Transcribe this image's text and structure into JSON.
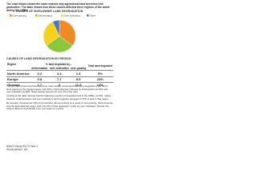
{
  "header": {
    "intro": "The chart below shows the main reasons why agricultural land becomes less productive. The table shows how these causes affected three regions of the world during the 1990s."
  },
  "chart_data": {
    "type": "pie",
    "title": "CAUSES OF WORLDWIDE LAND DEGRADATION",
    "categories": [
      "Over-grazing",
      "Deforestation",
      "Over-cultivation",
      "Other"
    ],
    "values": [
      35,
      30,
      28,
      7
    ],
    "colors": [
      "#f08a24",
      "#8cc63e",
      "#f6d21c",
      "#4a7ac7"
    ]
  },
  "table": {
    "title": "CAUSES OF LAND DEGRADATION BY REGION",
    "header": [
      "Region",
      "% land degraded by...",
      "Total land degraded"
    ],
    "subheader": [
      "deforestation",
      "over-cultivation",
      "over-grazing"
    ],
    "rows": [
      [
        "North America",
        "0.2",
        "3.3",
        "1.5",
        "5%"
      ],
      [
        "Europe",
        "9.8",
        "7.7",
        "5.5",
        "23%"
      ],
      [
        "Oceania",
        "1.7",
        "0",
        "11.3",
        "13%"
      ]
    ]
  },
  "paragraphs": [
    "The pie chart shows that there are three main causes of farmland becoming degraded in the world. Over-grazing is the biggest cause, with 35% of land affected, followed by deforestation at 30% and over-cultivation at 28%. Other causes account for only 7% of the total.",
    "Looking at the table, Europe had the highest proportion of degraded land in the 1990s, at 23%, mainly because of deforestation and over-cultivation, which together damaged 17.5% of land in that region.",
    "By contrast, Oceania lost 13% of its farmland, almost entirely as a result of over-grazing. North America was the least affected region, with only 5% of land degraded, mostly by over-cultivation. Overall, the causes differed considerably from one region to another."
  ],
  "footer": {
    "line1": "Band 9 essay IELTS Task 1",
    "line2": "Words written: 181"
  }
}
